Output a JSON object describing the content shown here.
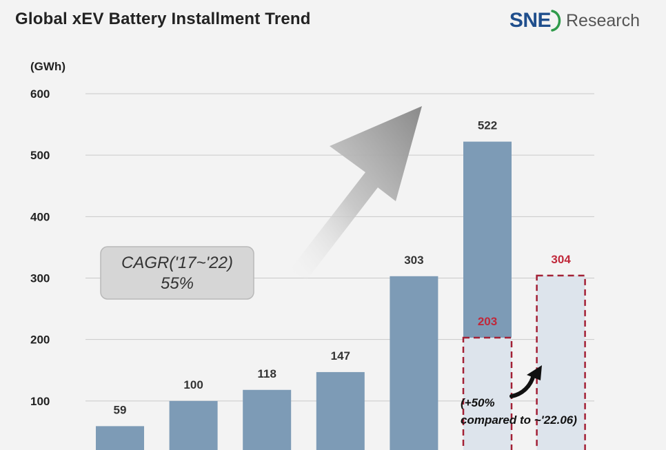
{
  "header": {
    "title": "Global xEV Battery Installment Trend",
    "logo": {
      "brand": "SNE",
      "suffix": "Research"
    }
  },
  "chart_data": {
    "type": "bar",
    "title": "Global xEV Battery Installment Trend",
    "ylabel": "(GWh)",
    "xlabel": "",
    "ylim": [
      0,
      600
    ],
    "yticks": [
      100,
      200,
      300,
      400,
      500,
      600
    ],
    "grid": true,
    "categories": [
      "",
      "",
      "",
      "",
      "",
      "",
      ""
    ],
    "values": [
      59,
      100,
      118,
      147,
      303,
      522,
      304
    ],
    "value_labels": [
      "59",
      "100",
      "118",
      "147",
      "303",
      "522",
      "304"
    ],
    "highlighted_segment": {
      "bar_index": 5,
      "value": 203,
      "label": "203"
    },
    "highlighted_bar": {
      "bar_index": 6,
      "value": 304,
      "label": "304"
    },
    "annotations": {
      "cagr_line1": "CAGR('17~'22)",
      "cagr_line2": "55%",
      "note_line1": "(+50%",
      "note_line2": "compared to ~'22.06)"
    },
    "colors": {
      "bar": "#7d9bb6",
      "bar_light": "#dde4ec",
      "highlight": "#a32035",
      "highlight_text": "#c0283a",
      "grid": "#c9c9c9"
    }
  }
}
